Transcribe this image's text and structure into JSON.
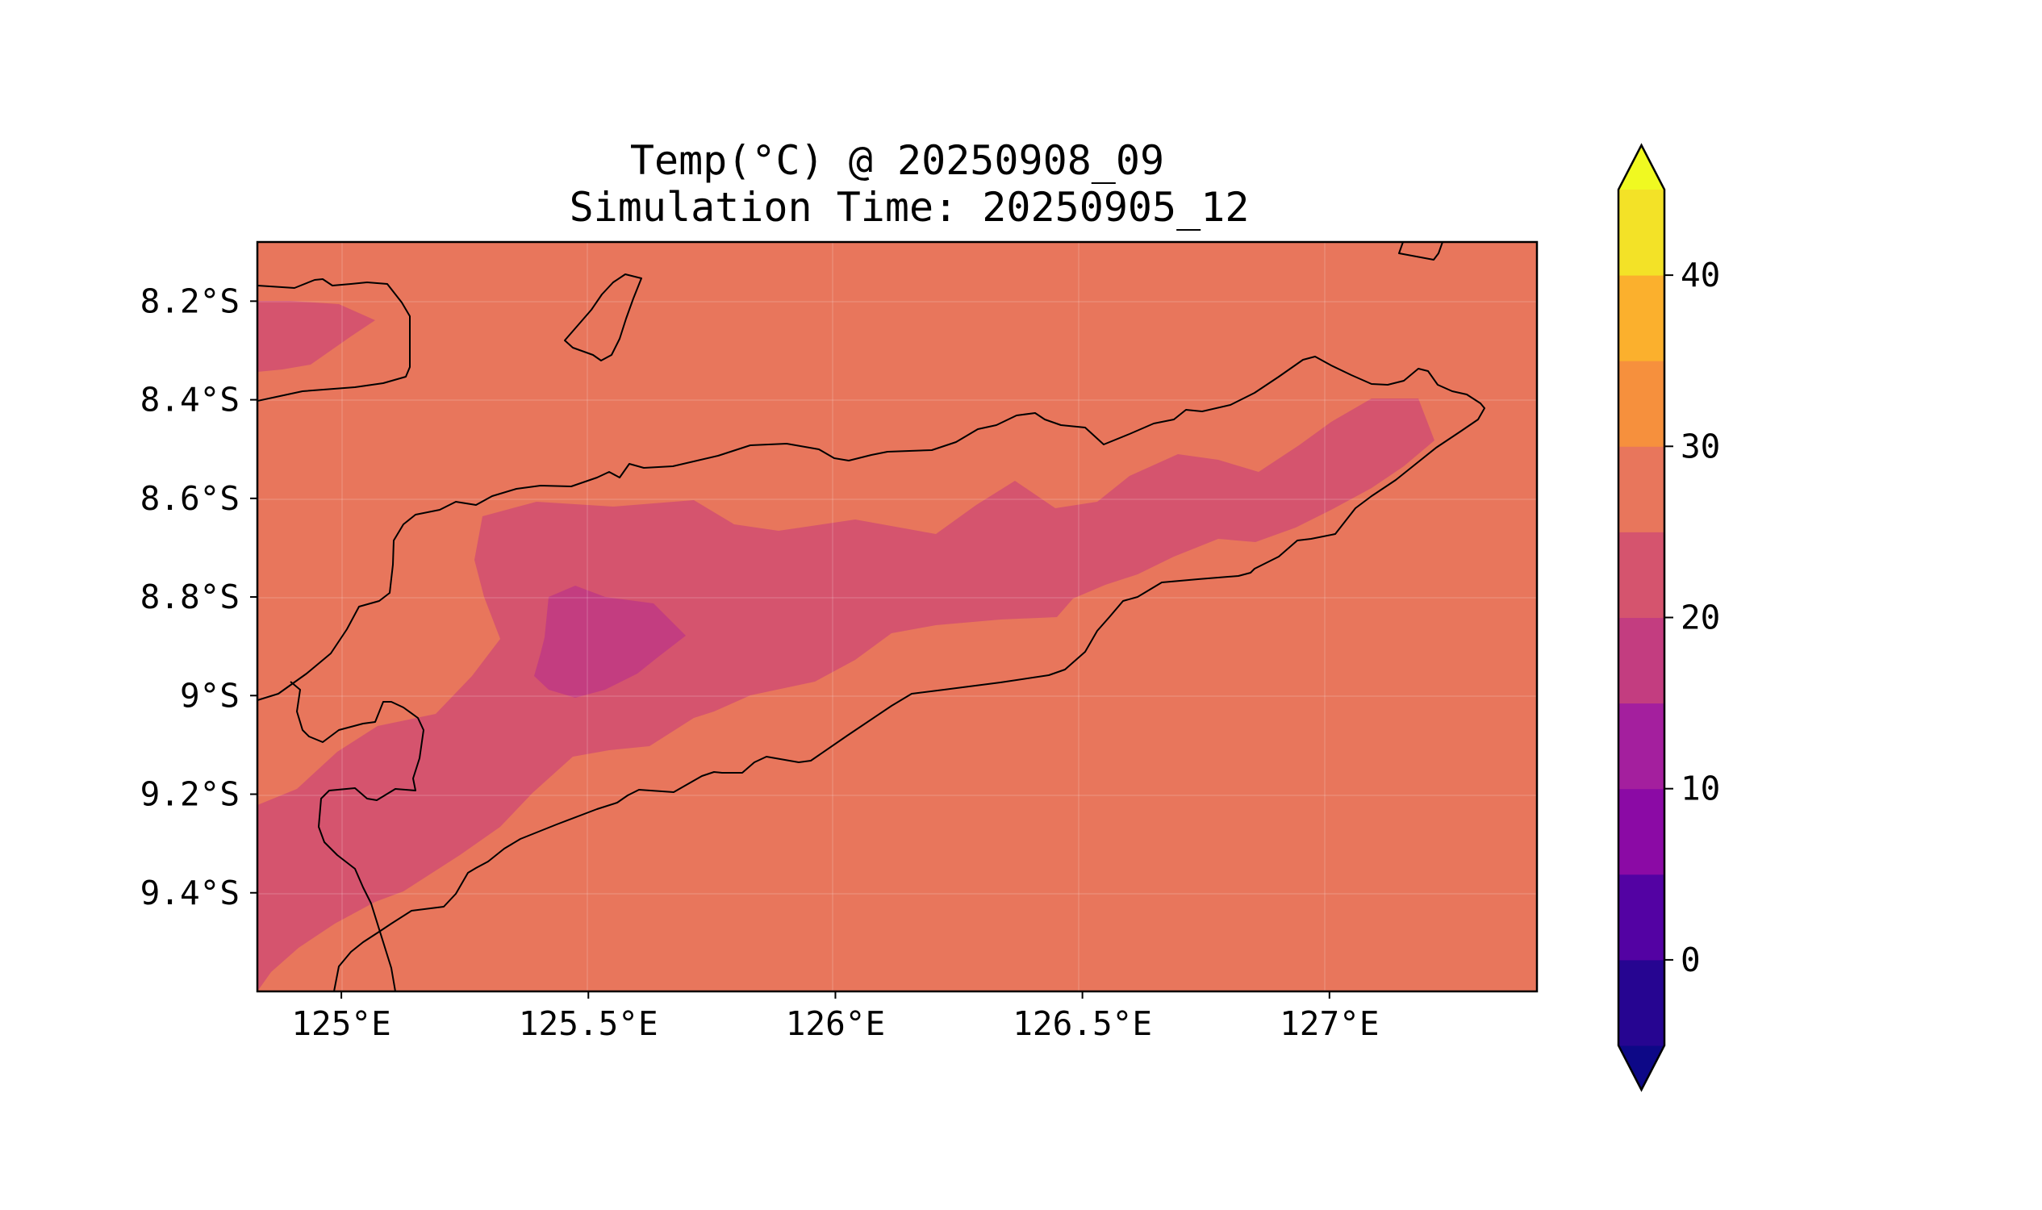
{
  "chart_data": {
    "type": "filled-contour-map",
    "title": "Temp(°C) @ 20250908_09",
    "subtitle": "Simulation Time: 20250905_12",
    "xlabel": "",
    "ylabel": "",
    "x_ticks": [
      {
        "value": 125.0,
        "label": "125°E"
      },
      {
        "value": 125.5,
        "label": "125.5°E"
      },
      {
        "value": 126.0,
        "label": "126°E"
      },
      {
        "value": 126.5,
        "label": "126.5°E"
      },
      {
        "value": 127.0,
        "label": "127°E"
      }
    ],
    "y_ticks": [
      {
        "value": -8.2,
        "label": "8.2°S"
      },
      {
        "value": -8.4,
        "label": "8.4°S"
      },
      {
        "value": -8.6,
        "label": "8.6°S"
      },
      {
        "value": -8.8,
        "label": "8.8°S"
      },
      {
        "value": -9.0,
        "label": "9°S"
      },
      {
        "value": -9.2,
        "label": "9.2°S"
      },
      {
        "value": -9.4,
        "label": "9.4°S"
      }
    ],
    "xlim": [
      124.83,
      127.42
    ],
    "ylim": [
      -9.6,
      -8.08
    ],
    "grid": true,
    "colorbar": {
      "levels": [
        -5,
        0,
        5,
        10,
        15,
        20,
        25,
        30,
        35,
        40,
        45
      ],
      "extend": "both",
      "colors": [
        "#0d0887",
        "#260591",
        "#5302a3",
        "#8b0aa5",
        "#a41f9e",
        "#c33d80",
        "#d5546e",
        "#e8765c",
        "#f6903d",
        "#fbb02d",
        "#f3e227",
        "#f0f921"
      ],
      "tick_values": [
        0,
        10,
        20,
        30,
        40
      ],
      "tick_labels": [
        "0",
        "10",
        "20",
        "30",
        "40"
      ]
    },
    "fill_regions": [
      {
        "level_range": [
          25,
          30
        ],
        "color": "#e8765c",
        "coverage": "background"
      },
      {
        "level_range": [
          20,
          25
        ],
        "color": "#d5546e",
        "coverage": "central Timor ridge and northwest corner"
      },
      {
        "level_range": [
          15,
          20
        ],
        "color": "#c33d80",
        "coverage": "local minimum near 125.5°E, 8.9°S"
      }
    ]
  }
}
